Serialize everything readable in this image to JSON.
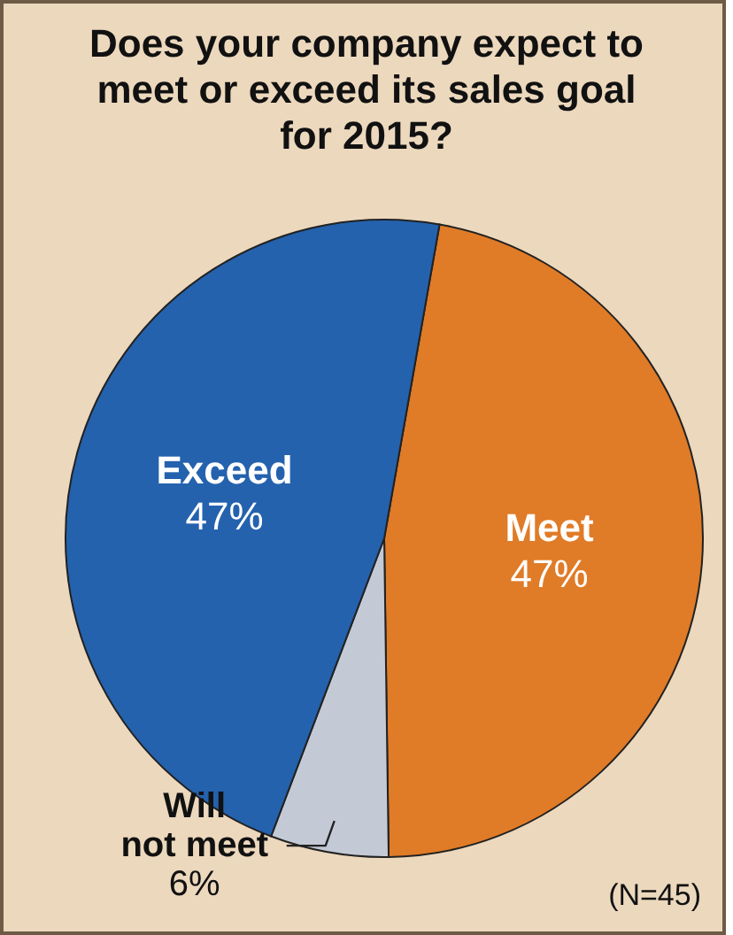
{
  "chart_data": {
    "type": "pie",
    "title": "Does your company expect to meet or exceed its sales goal for 2015?",
    "categories": [
      "Meet",
      "Will not meet",
      "Exceed"
    ],
    "values": [
      47,
      6,
      47
    ],
    "colors": [
      "#e07b27",
      "#c3cad6",
      "#2462ae"
    ],
    "value_labels": [
      "47%",
      "6%",
      "47%"
    ],
    "annotations": [
      "(N=45)"
    ]
  }
}
